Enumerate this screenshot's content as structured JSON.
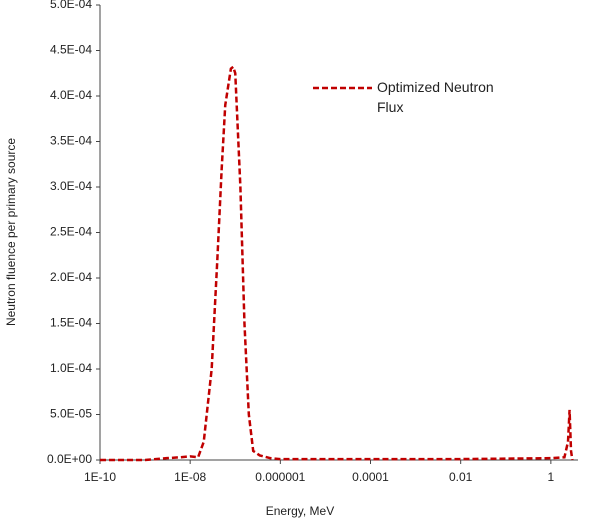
{
  "chart_data": {
    "type": "line",
    "x_label": "Energy, MeV",
    "y_label": "Neutron fluence  per primary  source",
    "x_log": true,
    "x": [
      1e-10,
      1e-09,
      3e-09,
      6e-09,
      1e-08,
      1.5e-08,
      2e-08,
      3e-08,
      4e-08,
      5e-08,
      6e-08,
      8e-08,
      9e-08,
      1e-07,
      1.3e-07,
      1.6e-07,
      2e-07,
      2.5e-07,
      3.5e-07,
      6e-07,
      1e-06,
      0.0001,
      0.01,
      1,
      2,
      2.4,
      2.6,
      2.8,
      3
    ],
    "series": [
      {
        "name": "Optimized Neutron Flux",
        "color": "#c00000",
        "values": [
          0,
          0,
          2e-06,
          3e-06,
          4e-06,
          3e-06,
          2e-05,
          0.0001,
          0.00022,
          0.00032,
          0.00039,
          0.00043,
          0.000432,
          0.000425,
          0.0003,
          0.00015,
          5e-05,
          1e-05,
          5e-06,
          2e-06,
          1e-06,
          1e-06,
          1e-06,
          2e-06,
          3e-06,
          2e-05,
          5.5e-05,
          1e-05,
          0
        ]
      }
    ],
    "xlim": [
      1e-10,
      4
    ],
    "xticks": [
      {
        "value": 1e-10,
        "label": "1E-10"
      },
      {
        "value": 1e-08,
        "label": "1E-08"
      },
      1e-06,
      0.0001,
      0.01,
      1
    ],
    "ylim": [
      0,
      0.0005
    ],
    "yticks": [
      {
        "value": 0,
        "label": "0.0E+00"
      },
      {
        "value": 5e-05,
        "label": "5.0E-05"
      },
      {
        "value": 0.0001,
        "label": "1.0E-04"
      },
      {
        "value": 0.00015,
        "label": "1.5E-04"
      },
      {
        "value": 0.0002,
        "label": "2.0E-04"
      },
      {
        "value": 0.00025,
        "label": "2.5E-04"
      },
      {
        "value": 0.0003,
        "label": "3.0E-04"
      },
      {
        "value": 0.00035,
        "label": "3.5E-04"
      },
      {
        "value": 0.0004,
        "label": "4.0E-04"
      },
      {
        "value": 0.00045,
        "label": "4.5E-04"
      },
      {
        "value": 0.0005,
        "label": "5.0E-04"
      }
    ],
    "legend": "top-right",
    "grid": false
  }
}
